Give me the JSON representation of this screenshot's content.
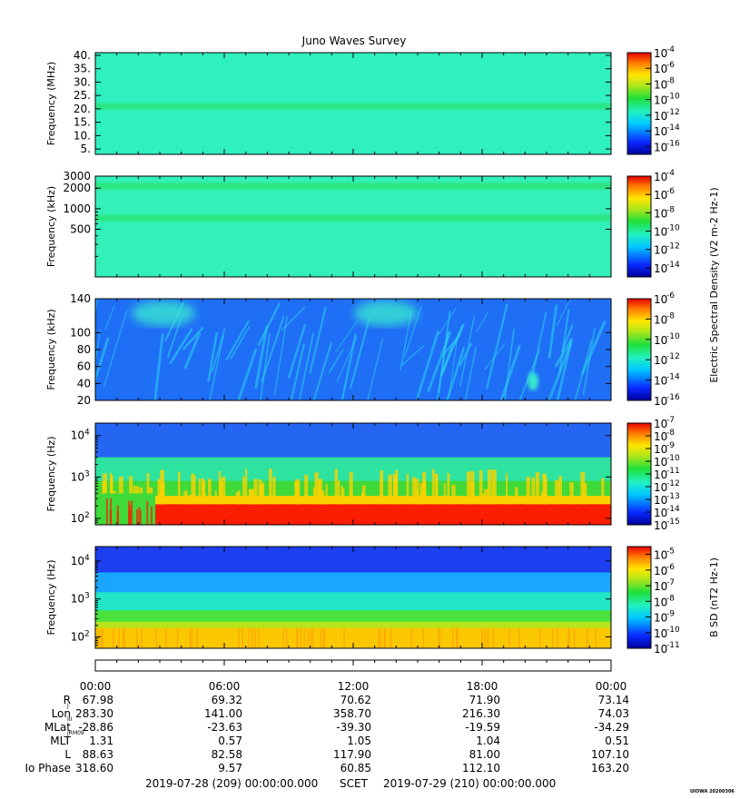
{
  "chart_data": {
    "type": "heatmap",
    "title": "Juno Waves Survey",
    "panels": [
      {
        "ylabel": "Frequency (MHz)",
        "yscale": "linear",
        "ylim": [
          3,
          41
        ],
        "yticks": [
          "40.",
          "35.",
          "30.",
          "25.",
          "20.",
          "15.",
          "10.",
          "5."
        ],
        "ytick_values": [
          40,
          35,
          30,
          25,
          20,
          15,
          10,
          5
        ],
        "colorbar": {
          "ticks": [
            "10-4",
            "10-6",
            "10-8",
            "10-10",
            "10-12",
            "10-14",
            "10-16"
          ],
          "exponents": [
            -4,
            -6,
            -8,
            -10,
            -12,
            -14,
            -16
          ],
          "range": [
            -17,
            -4
          ]
        },
        "background_color": "#2ff0bf",
        "bands": [
          {
            "value": 21,
            "color": "#2be37a"
          }
        ]
      },
      {
        "ylabel": "Frequency (kHz)",
        "yscale": "log",
        "ylim": [
          100,
          3000
        ],
        "yticks": [
          "3000",
          "2000",
          "1000",
          "500"
        ],
        "ytick_values": [
          3000,
          2000,
          1000,
          500
        ],
        "colorbar": {
          "ticks": [
            "10-4",
            "10-6",
            "10-8",
            "10-10",
            "10-12",
            "10-14"
          ],
          "exponents": [
            -4,
            -6,
            -8,
            -10,
            -12,
            -14
          ],
          "range": [
            -15,
            -4
          ]
        },
        "background_color": "#33f0b8",
        "bands": [
          {
            "value": 2150,
            "color": "#2ce377"
          },
          {
            "value": 730,
            "color": "#2ce377"
          }
        ]
      },
      {
        "ylabel": "Frequency (kHz)",
        "yscale": "linear",
        "ylim": [
          20,
          140
        ],
        "yticks": [
          "140",
          "100",
          "80",
          "60",
          "40",
          "20"
        ],
        "ytick_values": [
          140,
          100,
          80,
          60,
          40,
          20
        ],
        "colorbar": {
          "ticks": [
            "10-6",
            "10-8",
            "10-10",
            "10-12",
            "10-14",
            "10-16"
          ],
          "exponents": [
            -6,
            -8,
            -10,
            -12,
            -14,
            -16
          ],
          "range": [
            -16,
            -6
          ]
        },
        "background_color": "#1f6ff6"
      },
      {
        "ylabel": "Frequency (Hz)",
        "yscale": "log",
        "ylim": [
          70,
          20000
        ],
        "yticks": [
          "10",
          "10",
          "10"
        ],
        "ytick_exponents": [
          "4",
          "3",
          "2"
        ],
        "ytick_values": [
          10000,
          1000,
          100
        ],
        "colorbar": {
          "ticks": [
            "10-7",
            "10-8",
            "10-9",
            "10-10",
            "10-11",
            "10-12",
            "10-13",
            "10-14",
            "10-15"
          ],
          "exponents": [
            -7,
            -8,
            -9,
            -10,
            -11,
            -12,
            -13,
            -14,
            -15
          ],
          "range": [
            -15,
            -7
          ]
        },
        "layers": [
          {
            "from": 20000,
            "to": 3000,
            "color": "#2466f2"
          },
          {
            "from": 3000,
            "to": 800,
            "color": "#2ee3a0"
          },
          {
            "from": 800,
            "to": 350,
            "color": "#3fd93a"
          },
          {
            "from": 350,
            "to": 220,
            "color": "#f9d200"
          },
          {
            "from": 220,
            "to": 70,
            "color": "#fb1d00"
          }
        ]
      },
      {
        "ylabel": "Frequency (Hz)",
        "yscale": "log",
        "ylim": [
          50,
          24000
        ],
        "yticks": [
          "10",
          "10",
          "10"
        ],
        "ytick_exponents": [
          "4",
          "3",
          "2"
        ],
        "ytick_values": [
          10000,
          1000,
          100
        ],
        "colorbar": {
          "ticks": [
            "10-5",
            "10-6",
            "10-7",
            "10-8",
            "10-9",
            "10-10",
            "10-11"
          ],
          "exponents": [
            -5,
            -6,
            -7,
            -8,
            -9,
            -10,
            -11
          ],
          "range": [
            -11,
            -4.5
          ]
        },
        "layers": [
          {
            "from": 24000,
            "to": 5000,
            "color": "#1c3ff0"
          },
          {
            "from": 5000,
            "to": 1500,
            "color": "#1aa6ff"
          },
          {
            "from": 1500,
            "to": 500,
            "color": "#22e6c8"
          },
          {
            "from": 500,
            "to": 250,
            "color": "#49e13a"
          },
          {
            "from": 250,
            "to": 170,
            "color": "#b9e31c"
          },
          {
            "from": 170,
            "to": 50,
            "color": "#fbc800"
          }
        ]
      }
    ],
    "colorbar_shared_label": "Electric Spectral Density (V2 m-2 Hz-1)",
    "colorbar_label_b": "B SD (nT2 Hz-1)",
    "x": {
      "ticks": [
        "00:00",
        "06:00",
        "12:00",
        "18:00",
        "00:00"
      ],
      "tick_hours": [
        0,
        6,
        12,
        18,
        24
      ],
      "range_hours": [
        0,
        24
      ]
    },
    "ephemeris": [
      {
        "label": "R",
        "sub": "J",
        "values": [
          "67.98",
          "69.32",
          "70.62",
          "71.90",
          "73.14"
        ]
      },
      {
        "label": "Lon",
        "sub": "III",
        "values": [
          "283.30",
          "141.00",
          "358.70",
          "216.30",
          "74.03"
        ]
      },
      {
        "label": "MLat",
        "sub": "JRM09",
        "values": [
          "-28.86",
          "-23.63",
          "-39.30",
          "-19.59",
          "-34.29"
        ]
      },
      {
        "label": "MLT",
        "sub": "",
        "values": [
          "1.31",
          "0.57",
          "1.05",
          "1.04",
          "0.51"
        ]
      },
      {
        "label": "L",
        "sub": "",
        "values": [
          "88.63",
          "82.58",
          "117.90",
          "81.00",
          "107.10"
        ]
      },
      {
        "label": "Io Phase",
        "sub": "",
        "values": [
          "318.60",
          "9.57",
          "60.85",
          "112.10",
          "163.20"
        ]
      }
    ],
    "footer": {
      "start": "2019-07-28 (209) 00:00:00.000",
      "mid": "SCET",
      "end": "2019-07-29 (210) 00:00:00.000"
    },
    "stamp": "UIOWA 20200306"
  }
}
